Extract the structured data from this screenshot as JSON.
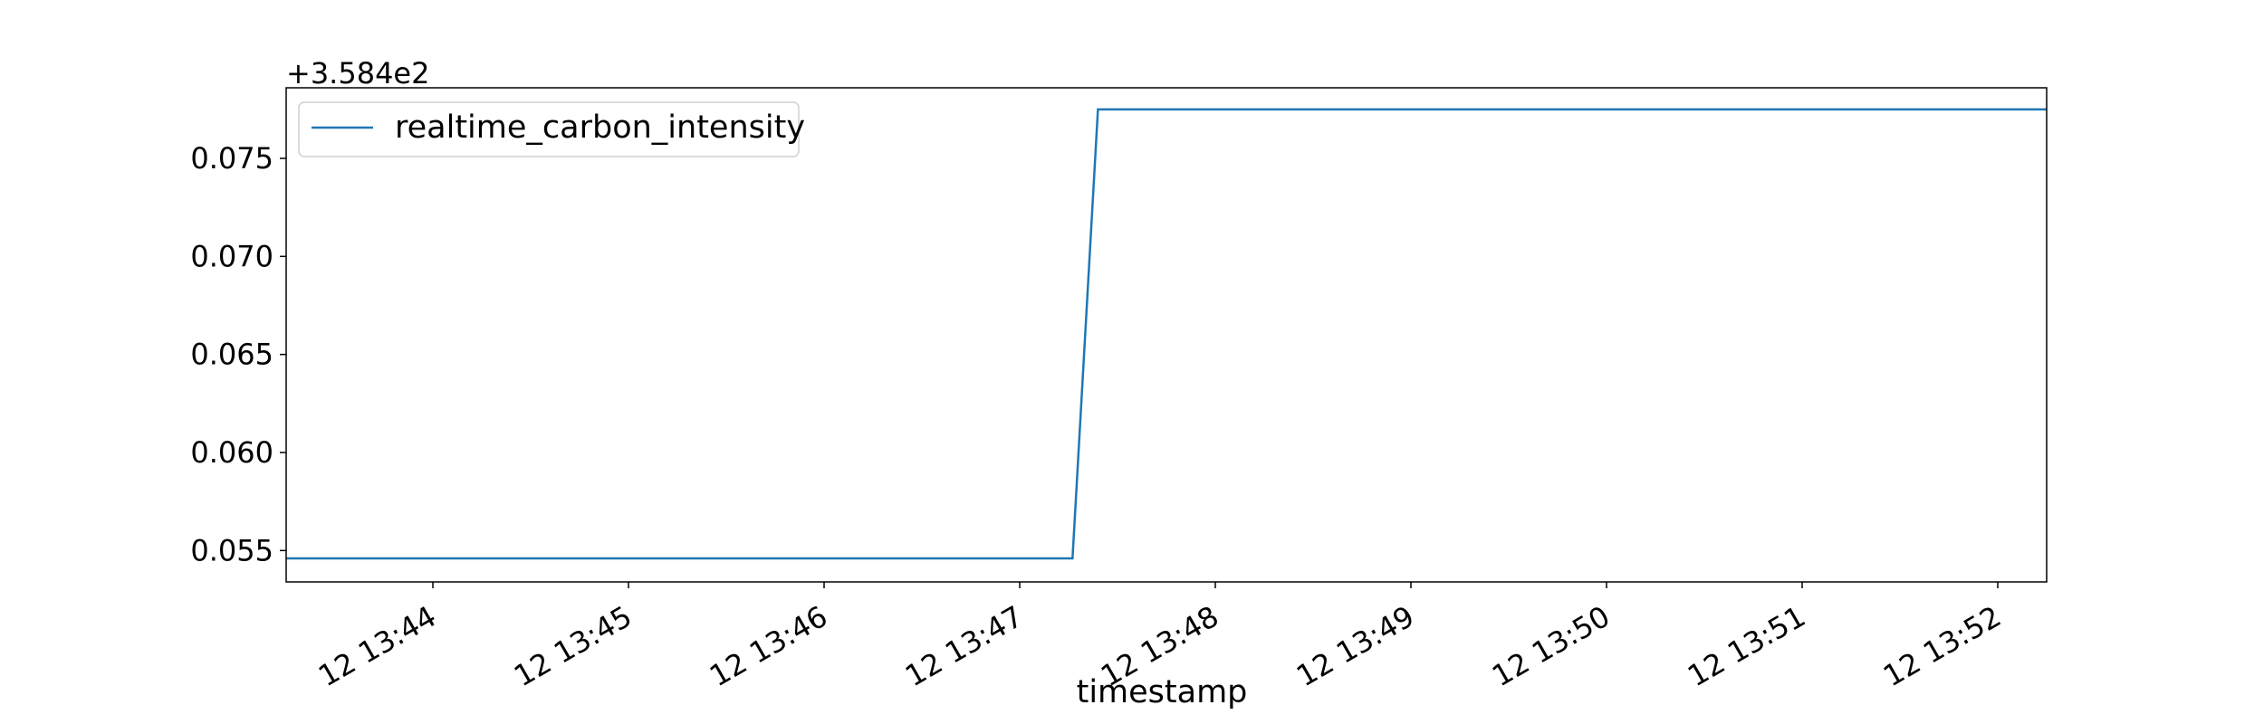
{
  "chart_data": {
    "type": "line",
    "title": "",
    "xlabel": "timestamp",
    "ylabel": "",
    "y_offset_label": "+3.584e2",
    "x_unit": "minutes after 12 13:43",
    "x_range": [
      -0.75,
      8.25
    ],
    "ylim": [
      0.0534,
      0.0786
    ],
    "x_ticks": [
      {
        "value": 0,
        "label": "12 13:44"
      },
      {
        "value": 1,
        "label": "12 13:45"
      },
      {
        "value": 2,
        "label": "12 13:46"
      },
      {
        "value": 3,
        "label": "12 13:47"
      },
      {
        "value": 4,
        "label": "12 13:48"
      },
      {
        "value": 5,
        "label": "12 13:49"
      },
      {
        "value": 6,
        "label": "12 13:50"
      },
      {
        "value": 7,
        "label": "12 13:51"
      },
      {
        "value": 8,
        "label": "12 13:52"
      }
    ],
    "y_ticks": [
      {
        "value": 0.055,
        "label": "0.055"
      },
      {
        "value": 0.06,
        "label": "0.060"
      },
      {
        "value": 0.065,
        "label": "0.065"
      },
      {
        "value": 0.07,
        "label": "0.070"
      },
      {
        "value": 0.075,
        "label": "0.075"
      }
    ],
    "grid": false,
    "legend_position": "top-left",
    "series": [
      {
        "name": "realtime_carbon_intensity",
        "color": "#1f77b4",
        "points": [
          {
            "x": -0.75,
            "y": 0.0546
          },
          {
            "x": 3.27,
            "y": 0.0546
          },
          {
            "x": 3.4,
            "y": 0.0775
          },
          {
            "x": 8.25,
            "y": 0.0775
          }
        ]
      }
    ]
  }
}
